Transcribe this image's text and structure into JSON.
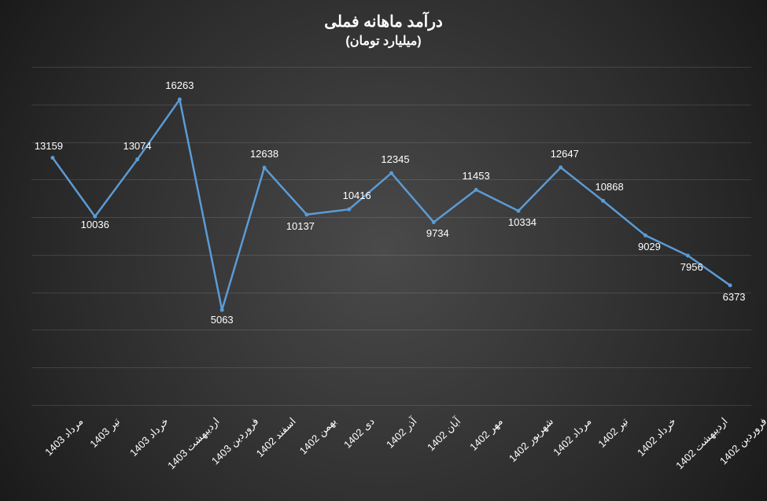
{
  "chart": {
    "type": "line",
    "title": "درآمد ماهانه فملی",
    "subtitle": "(میلیارد تومان)",
    "title_fontsize": 20,
    "subtitle_fontsize": 16,
    "background": "radial-gradient dark grey",
    "line_color": "#5b9bd5",
    "line_width": 2.5,
    "marker_color": "#5b9bd5",
    "marker_size": 5,
    "text_color": "#ffffff",
    "grid_color": "rgba(255,255,255,0.12)",
    "ylim": [
      0,
      18000
    ],
    "gridline_count": 9,
    "x_label_rotation": -45,
    "label_fontsize": 13,
    "categories": [
      "مرداد 1403",
      "تیر 1403",
      "خرداد 1403",
      "اردیبهشت 1403",
      "فروردین 1403",
      "اسفند 1402",
      "بهمن 1402",
      "دی 1402",
      "آذر 1402",
      "آبان 1402",
      "مهر 1402",
      "شهریور 1402",
      "مرداد 1402",
      "تیر 1402",
      "خرداد 1402",
      "اردیبهشت 1402",
      "فروردین 1402"
    ],
    "values": [
      13159,
      10036,
      13074,
      16263,
      5063,
      12638,
      10137,
      10416,
      12345,
      9734,
      11453,
      10334,
      12647,
      10868,
      9029,
      7956,
      6373
    ]
  }
}
